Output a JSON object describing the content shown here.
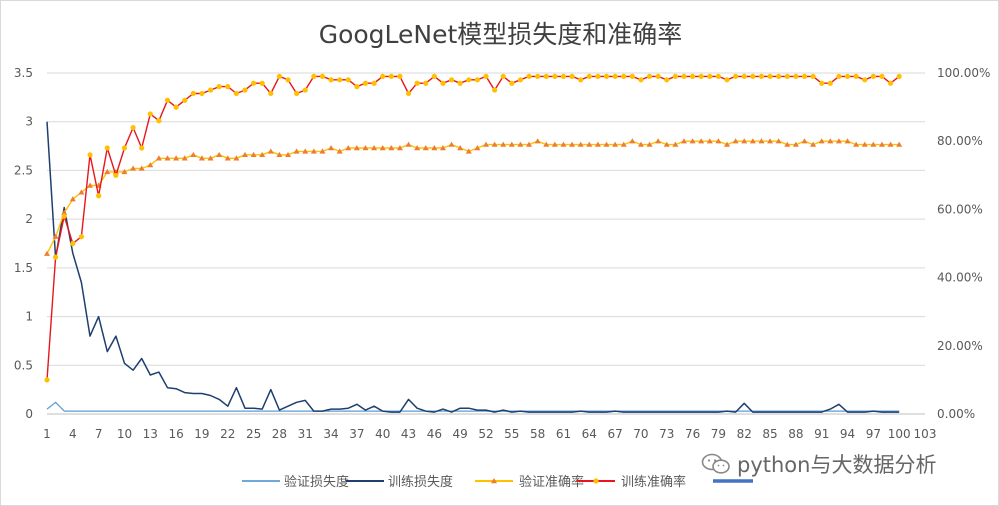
{
  "watermark": {
    "text": "python与大数据分析",
    "icon": "wechat-icon"
  },
  "colors": {
    "val_loss": "#5b9bd5",
    "train_loss": "#1f3f6e",
    "val_acc": "#ffc000",
    "val_acc_marker": "#ed7d31",
    "train_acc": "#e8161c",
    "train_acc_marker": "#ffc000",
    "extra_series": "#4472c4",
    "grid": "#d9d9d9"
  },
  "chart_data": {
    "type": "line",
    "title": "GoogLeNet模型损失度和准确率",
    "x": [
      1,
      2,
      3,
      4,
      5,
      6,
      7,
      8,
      9,
      10,
      11,
      12,
      13,
      14,
      15,
      16,
      17,
      18,
      19,
      20,
      21,
      22,
      23,
      24,
      25,
      26,
      27,
      28,
      29,
      30,
      31,
      32,
      33,
      34,
      35,
      36,
      37,
      38,
      39,
      40,
      41,
      42,
      43,
      44,
      45,
      46,
      47,
      48,
      49,
      50,
      51,
      52,
      53,
      54,
      55,
      56,
      57,
      58,
      59,
      60,
      61,
      62,
      63,
      64,
      65,
      66,
      67,
      68,
      69,
      70,
      71,
      72,
      73,
      74,
      75,
      76,
      77,
      78,
      79,
      80,
      81,
      82,
      83,
      84,
      85,
      86,
      87,
      88,
      89,
      90,
      91,
      92,
      93,
      94,
      95,
      96,
      97,
      98,
      99,
      100
    ],
    "xticks": [
      1,
      4,
      7,
      10,
      13,
      16,
      19,
      22,
      25,
      28,
      31,
      34,
      37,
      40,
      43,
      46,
      49,
      52,
      55,
      58,
      61,
      64,
      67,
      70,
      73,
      76,
      79,
      82,
      85,
      88,
      91,
      94,
      97,
      100,
      103
    ],
    "xlim": [
      1,
      103
    ],
    "yticks_left": [
      "0",
      "0.5",
      "1",
      "1.5",
      "2",
      "2.5",
      "3",
      "3.5"
    ],
    "ylim_left": [
      0,
      3.5
    ],
    "yticks_right": [
      "0.00%",
      "20.00%",
      "40.00%",
      "60.00%",
      "80.00%",
      "100.00%"
    ],
    "ylim_right": [
      0,
      1.0
    ],
    "grid": true,
    "legend_position": "bottom",
    "series": [
      {
        "name": "验证损失度",
        "axis": "left",
        "marker": "none",
        "values": [
          0.05,
          0.12,
          0.03,
          0.03,
          0.03,
          0.03,
          0.03,
          0.03,
          0.03,
          0.03,
          0.03,
          0.03,
          0.03,
          0.03,
          0.03,
          0.03,
          0.03,
          0.03,
          0.03,
          0.03,
          0.03,
          0.03,
          0.03,
          0.03,
          0.03,
          0.03,
          0.03,
          0.03,
          0.03,
          0.03,
          0.03,
          0.03,
          0.03,
          0.03,
          0.03,
          0.03,
          0.03,
          0.03,
          0.03,
          0.03,
          0.03,
          0.03,
          0.03,
          0.03,
          0.03,
          0.03,
          0.03,
          0.03,
          0.03,
          0.03,
          0.03,
          0.03,
          0.03,
          0.03,
          0.03,
          0.03,
          0.03,
          0.03,
          0.03,
          0.03,
          0.03,
          0.03,
          0.03,
          0.03,
          0.03,
          0.03,
          0.03,
          0.03,
          0.03,
          0.03,
          0.03,
          0.03,
          0.03,
          0.03,
          0.03,
          0.03,
          0.03,
          0.03,
          0.03,
          0.03,
          0.03,
          0.03,
          0.03,
          0.03,
          0.03,
          0.03,
          0.03,
          0.03,
          0.03,
          0.03,
          0.03,
          0.03,
          0.03,
          0.03,
          0.03,
          0.03,
          0.03,
          0.03,
          0.03,
          0.03
        ]
      },
      {
        "name": "训练损失度",
        "axis": "left",
        "marker": "none",
        "values": [
          3.0,
          1.6,
          2.12,
          1.65,
          1.35,
          0.8,
          1.0,
          0.64,
          0.8,
          0.52,
          0.45,
          0.57,
          0.4,
          0.43,
          0.27,
          0.26,
          0.22,
          0.21,
          0.21,
          0.19,
          0.15,
          0.08,
          0.27,
          0.06,
          0.06,
          0.05,
          0.25,
          0.04,
          0.08,
          0.12,
          0.14,
          0.03,
          0.03,
          0.05,
          0.05,
          0.06,
          0.1,
          0.04,
          0.08,
          0.03,
          0.02,
          0.02,
          0.15,
          0.06,
          0.03,
          0.02,
          0.05,
          0.02,
          0.06,
          0.06,
          0.04,
          0.04,
          0.02,
          0.04,
          0.02,
          0.03,
          0.02,
          0.02,
          0.02,
          0.02,
          0.02,
          0.02,
          0.03,
          0.02,
          0.02,
          0.02,
          0.03,
          0.02,
          0.02,
          0.02,
          0.02,
          0.02,
          0.02,
          0.02,
          0.02,
          0.02,
          0.02,
          0.02,
          0.02,
          0.03,
          0.02,
          0.11,
          0.02,
          0.02,
          0.02,
          0.02,
          0.02,
          0.02,
          0.02,
          0.02,
          0.02,
          0.05,
          0.1,
          0.02,
          0.02,
          0.02,
          0.03,
          0.02,
          0.02,
          0.02
        ]
      },
      {
        "name": "验证准确率",
        "axis": "right",
        "marker": "triangle",
        "values": [
          0.47,
          0.52,
          0.59,
          0.63,
          0.65,
          0.67,
          0.67,
          0.71,
          0.71,
          0.71,
          0.72,
          0.72,
          0.73,
          0.75,
          0.75,
          0.75,
          0.75,
          0.76,
          0.75,
          0.75,
          0.76,
          0.75,
          0.75,
          0.76,
          0.76,
          0.76,
          0.77,
          0.76,
          0.76,
          0.77,
          0.77,
          0.77,
          0.77,
          0.78,
          0.77,
          0.78,
          0.78,
          0.78,
          0.78,
          0.78,
          0.78,
          0.78,
          0.79,
          0.78,
          0.78,
          0.78,
          0.78,
          0.79,
          0.78,
          0.77,
          0.78,
          0.79,
          0.79,
          0.79,
          0.79,
          0.79,
          0.79,
          0.8,
          0.79,
          0.79,
          0.79,
          0.79,
          0.79,
          0.79,
          0.79,
          0.79,
          0.79,
          0.79,
          0.8,
          0.79,
          0.79,
          0.8,
          0.79,
          0.79,
          0.8,
          0.8,
          0.8,
          0.8,
          0.8,
          0.79,
          0.8,
          0.8,
          0.8,
          0.8,
          0.8,
          0.8,
          0.79,
          0.79,
          0.8,
          0.79,
          0.8,
          0.8,
          0.8,
          0.8,
          0.79,
          0.79,
          0.79,
          0.79,
          0.79,
          0.79
        ]
      },
      {
        "name": "训练准确率",
        "axis": "right",
        "marker": "circle",
        "values": [
          0.1,
          0.46,
          0.58,
          0.5,
          0.52,
          0.76,
          0.64,
          0.78,
          0.7,
          0.78,
          0.84,
          0.78,
          0.88,
          0.86,
          0.92,
          0.9,
          0.92,
          0.94,
          0.94,
          0.95,
          0.96,
          0.96,
          0.94,
          0.95,
          0.97,
          0.97,
          0.94,
          0.99,
          0.98,
          0.94,
          0.95,
          0.99,
          0.99,
          0.98,
          0.98,
          0.98,
          0.96,
          0.97,
          0.97,
          0.99,
          0.99,
          0.99,
          0.94,
          0.97,
          0.97,
          0.99,
          0.97,
          0.98,
          0.97,
          0.98,
          0.98,
          0.99,
          0.95,
          0.99,
          0.97,
          0.98,
          0.99,
          0.99,
          0.99,
          0.99,
          0.99,
          0.99,
          0.98,
          0.99,
          0.99,
          0.99,
          0.99,
          0.99,
          0.99,
          0.98,
          0.99,
          0.99,
          0.98,
          0.99,
          0.99,
          0.99,
          0.99,
          0.99,
          0.99,
          0.98,
          0.99,
          0.99,
          0.99,
          0.99,
          0.99,
          0.99,
          0.99,
          0.99,
          0.99,
          0.99,
          0.97,
          0.97,
          0.99,
          0.99,
          0.99,
          0.98,
          0.99,
          0.99,
          0.97,
          0.99
        ]
      }
    ]
  }
}
